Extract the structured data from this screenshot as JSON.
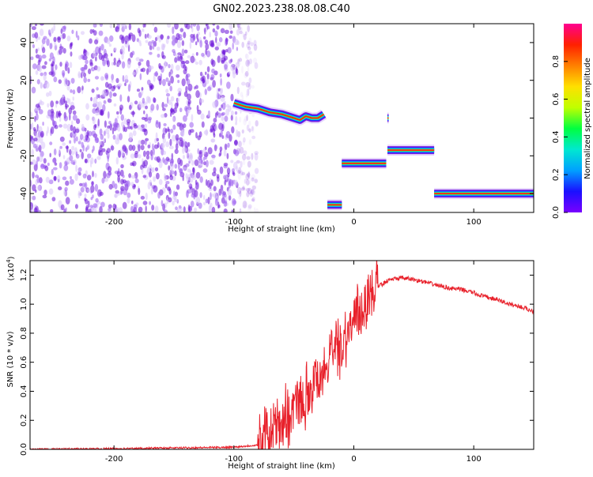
{
  "page_title": "GN02.2023.238.08.08.C40",
  "colors": {
    "snr_line": "#e8202a",
    "noise_purple": "#7a1fe0",
    "colorbar": [
      "#7a00ff",
      "#1a10ff",
      "#00a0ff",
      "#00e8d0",
      "#00ff40",
      "#c0ff00",
      "#ffe000",
      "#ff8000",
      "#ff2000",
      "#ff0090"
    ]
  },
  "chart_data": [
    {
      "type": "heatmap",
      "title": "",
      "xlabel": "Height of straight line (km)",
      "ylabel": "Frequency (Hz)",
      "xlim": [
        -270,
        150
      ],
      "ylim": [
        -50,
        50
      ],
      "x_ticks": [
        -200,
        -100,
        0,
        100
      ],
      "x_tick_labels": [
        "-200",
        "-100",
        "0",
        "100"
      ],
      "y_ticks": [
        -40,
        -20,
        0,
        20,
        40
      ],
      "y_tick_labels": [
        "-40",
        "-20",
        "0",
        "20",
        "40"
      ],
      "noise_region": {
        "x_from": -270,
        "x_to": -90,
        "y_from": -50,
        "y_to": 50
      },
      "tracks": [
        {
          "x": [
            -100,
            -90,
            -80,
            -70,
            -60,
            -50,
            -45,
            -40,
            -35,
            -30,
            -25
          ],
          "y": [
            8,
            6,
            5,
            3,
            2,
            0,
            -1,
            1,
            0,
            0,
            2
          ]
        },
        {
          "x": [
            -22,
            -10
          ],
          "y": [
            -46,
            -46
          ]
        },
        {
          "x": [
            -10,
            27
          ],
          "y": [
            -24,
            -24
          ]
        },
        {
          "x": [
            28,
            29
          ],
          "y": [
            0,
            0
          ]
        },
        {
          "x": [
            28,
            67
          ],
          "y": [
            -17,
            -17
          ]
        },
        {
          "x": [
            67,
            150
          ],
          "y": [
            -40,
            -40
          ]
        }
      ],
      "colorbar": {
        "label": "Normalized spectral amplitude",
        "range": [
          0,
          1
        ],
        "ticks": [
          0.0,
          0.2,
          0.4,
          0.6,
          0.8
        ],
        "tick_labels": [
          "0.0",
          "0.2",
          "0.4",
          "0.6",
          "0.8"
        ]
      }
    },
    {
      "type": "line",
      "title": "",
      "xlabel": "Height of straight line (km)",
      "ylabel": "SNR (10 * v/v)",
      "y_multiplier": "(x10",
      "y_multiplier_exp": "4",
      "y_multiplier_close": ")",
      "xlim": [
        -270,
        150
      ],
      "ylim": [
        0,
        1.3
      ],
      "x_ticks": [
        -200,
        -100,
        0,
        100
      ],
      "x_tick_labels": [
        "-200",
        "-100",
        "0",
        "100"
      ],
      "y_ticks": [
        0.0,
        0.2,
        0.4,
        0.6,
        0.8,
        1.0,
        1.2
      ],
      "y_tick_labels": [
        "0.0",
        "0.2",
        "0.4",
        "0.6",
        "0.8",
        "1.0",
        "1.2"
      ],
      "series": [
        {
          "x": [
            -270,
            -200,
            -150,
            -100,
            -80,
            -70,
            -60,
            -50,
            -40,
            -30,
            -20,
            -10,
            0,
            10,
            20,
            30,
            40,
            50,
            60,
            70,
            80,
            90,
            100,
            102,
            110,
            120,
            130,
            140,
            150
          ],
          "y": [
            0.0,
            0.005,
            0.01,
            0.015,
            0.03,
            0.1,
            0.2,
            0.28,
            0.38,
            0.5,
            0.62,
            0.74,
            0.88,
            1.02,
            1.12,
            1.17,
            1.18,
            1.17,
            1.15,
            1.13,
            1.11,
            1.1,
            1.08,
            1.07,
            1.05,
            1.03,
            1.0,
            0.98,
            0.95
          ]
        }
      ]
    }
  ]
}
